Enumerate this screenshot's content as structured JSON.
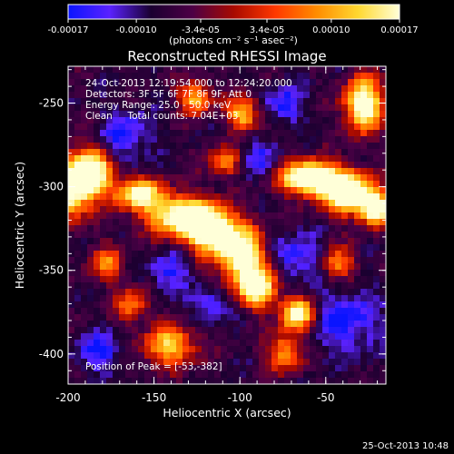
{
  "chart_data": {
    "type": "heatmap",
    "title": "Reconstructed RHESSI Image",
    "xlabel": "Heliocentric X (arcsec)",
    "ylabel": "Heliocentric Y (arcsec)",
    "xlim": [
      -200,
      -15
    ],
    "ylim": [
      -418,
      -228
    ],
    "x_ticks": [
      -200,
      -150,
      -100,
      -50
    ],
    "x_tick_labels": [
      "-200",
      "-150",
      "-100",
      "-50"
    ],
    "y_ticks": [
      -400,
      -350,
      -300,
      -250
    ],
    "y_tick_labels": [
      "-400",
      "-350",
      "-300",
      "-250"
    ],
    "colorbar": {
      "range": [
        -0.00017,
        0.00017
      ],
      "ticks": [
        -0.00017,
        -0.0001,
        -3.4e-05,
        3.4e-05,
        0.0001,
        0.00017
      ],
      "tick_labels": [
        "-0.00017",
        "-0.00010",
        "-3.4e-05",
        "3.4e-05",
        "0.00010",
        "0.00017"
      ],
      "units_label": "(photons cm⁻² s⁻¹ asec⁻²)",
      "colors": [
        "#0a14ff",
        "#5a22ff",
        "#1a0030",
        "#4d0046",
        "#a80a00",
        "#ff3800",
        "#ff8c00",
        "#ffd830",
        "#ffffd8"
      ]
    },
    "annotations": [
      "24-Oct-2013 12:19:54.000 to 12:24:20.000",
      "Detectors: 3F 5F 6F 7F 8F 9F, Att 0",
      "Energy Range: 25.0 - 50.0 keV",
      "Clean     Total counts: 7.04E+03"
    ],
    "peak_label": "Position of Peak = [-53,-382]",
    "peak_position": [
      -53,
      -382
    ],
    "grid": false
  },
  "footer": {
    "timestamp": "25-Oct-2013 10:48"
  }
}
